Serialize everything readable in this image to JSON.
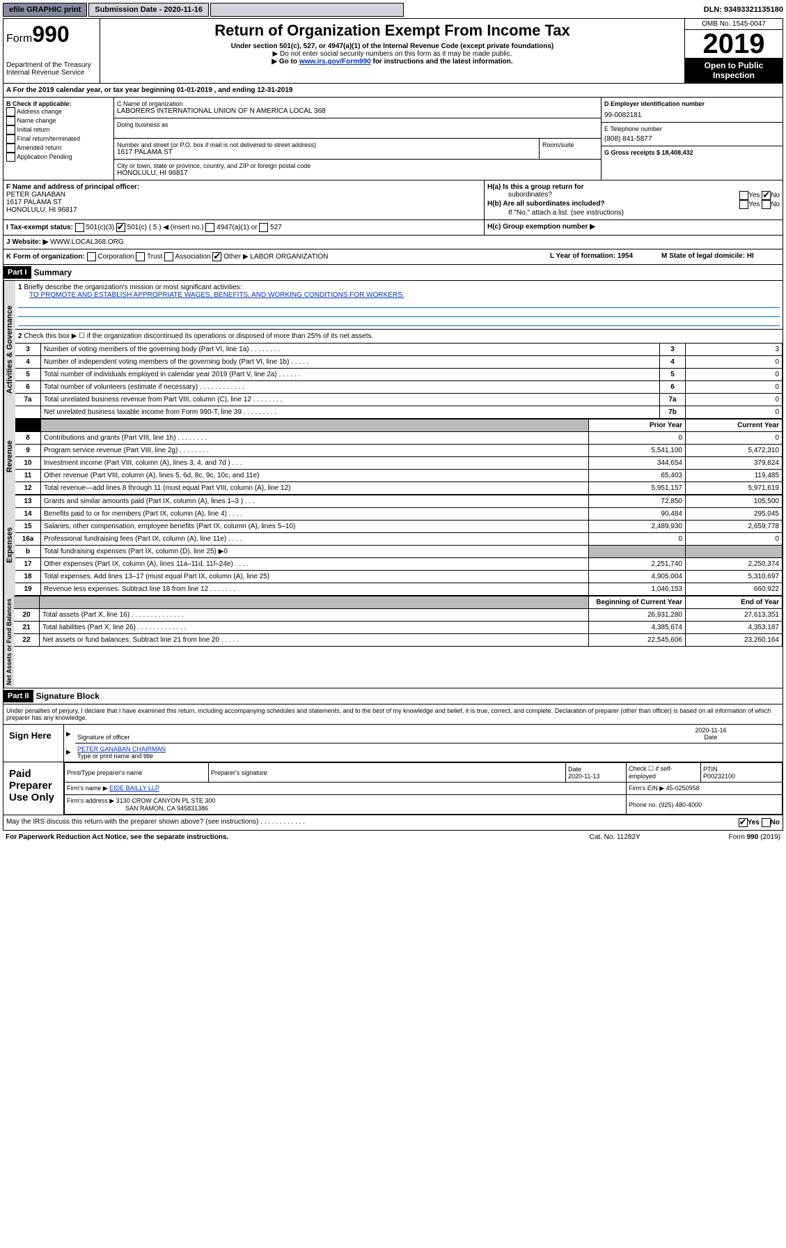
{
  "topbar": {
    "efile": "efile GRAPHIC print",
    "submission": "Submission Date - 2020-11-16",
    "dln": "DLN: 93493321135180"
  },
  "header": {
    "form_prefix": "Form",
    "form_num": "990",
    "dept": "Department of the Treasury",
    "irs": "Internal Revenue Service",
    "title": "Return of Organization Exempt From Income Tax",
    "subtitle": "Under section 501(c), 527, or 4947(a)(1) of the Internal Revenue Code (except private foundations)",
    "note1": "▶ Do not enter social security numbers on this form as it may be made public.",
    "note2_pre": "▶ Go to ",
    "note2_link": "www.irs.gov/Form990",
    "note2_post": " for instructions and the latest information.",
    "omb": "OMB No. 1545-0047",
    "year": "2019",
    "open": "Open to Public",
    "inspection": "Inspection"
  },
  "period": "A For the 2019 calendar year, or tax year beginning 01-01-2019   , and ending 12-31-2019",
  "checkboxes": {
    "b_label": "B Check if applicable:",
    "addr_change": "Address change",
    "name_change": "Name change",
    "initial": "Initial return",
    "final": "Final return/terminated",
    "amended": "Amended return",
    "pending": "Application Pending"
  },
  "org": {
    "c_label": "C Name of organization",
    "name": "LABORERS INTERNATIONAL UNION OF N AMERICA LOCAL 368",
    "dba": "Doing business as",
    "addr_label": "Number and street (or P.O. box if mail is not delivered to street address)",
    "room": "Room/suite",
    "street": "1617 PALAMA ST",
    "city_label": "City or town, state or province, country, and ZIP or foreign postal code",
    "city": "HONOLULU, HI  96817"
  },
  "right_box": {
    "d_label": "D Employer identification number",
    "ein": "99-0082181",
    "e_label": "E Telephone number",
    "phone": "(808) 841-5877",
    "g_label": "G Gross receipts $ 18,408,432"
  },
  "f_box": {
    "label": "F  Name and address of principal officer:",
    "name": "PETER GANABAN",
    "street": "1617 PALAMA ST",
    "city": "HONOLULU, HI  96817"
  },
  "h_box": {
    "ha": "H(a)  Is this a group return for",
    "subs": "subordinates?",
    "hb": "H(b)  Are all subordinates included?",
    "note": "If \"No,\" attach a list. (see instructions)",
    "hc": "H(c)  Group exemption number ▶",
    "yes": "Yes",
    "no": "No"
  },
  "i_row": {
    "label": "I  Tax-exempt status:",
    "c3": "501(c)(3)",
    "c5": "501(c) ( 5 ) ◀ (insert no.)",
    "a1": "4947(a)(1) or",
    "s527": "527"
  },
  "j_row": {
    "label": "J  Website: ▶",
    "url": "WWW.LOCAL368.ORG"
  },
  "k_row": {
    "label": "K Form of organization:",
    "corp": "Corporation",
    "trust": "Trust",
    "assoc": "Association",
    "other": "Other ▶",
    "other_val": "LABOR ORGANIZATION",
    "l_label": "L Year of formation: 1954",
    "m_label": "M State of legal domicile: HI"
  },
  "part1": {
    "hdr": "Part I",
    "title": "Summary",
    "vtab1": "Activities & Governance",
    "vtab2": "Revenue",
    "vtab3": "Expenses",
    "vtab4": "Net Assets or Fund Balances",
    "l1": "Briefly describe the organization's mission or most significant activities:",
    "mission": "TO PROMOTE AND ESTABLISH APPROPRIATE WAGES, BENEFITS, AND WORKING CONDITIONS FOR WORKERS.",
    "l2": "Check this box ▶ ☐  if the organization discontinued its operations or disposed of more than 25% of its net assets.",
    "rows_gov": [
      {
        "n": "3",
        "t": "Number of voting members of the governing body (Part VI, line 1a)  .   .   .   .   .   .   .   .",
        "b": "3",
        "v": "3"
      },
      {
        "n": "4",
        "t": "Number of independent voting members of the governing body (Part VI, line 1b)  .   .   .   .   .",
        "b": "4",
        "v": "0"
      },
      {
        "n": "5",
        "t": "Total number of individuals employed in calendar year 2019 (Part V, line 2a)  .   .   .   .   .   .",
        "b": "5",
        "v": "0"
      },
      {
        "n": "6",
        "t": "Total number of volunteers (estimate if necessary)  .   .   .   .   .   .   .   .   .   .   .   .",
        "b": "6",
        "v": "0"
      },
      {
        "n": "7a",
        "t": "Total unrelated business revenue from Part VIII, column (C), line 12  .   .   .   .   .   .   .   .",
        "b": "7a",
        "v": "0"
      },
      {
        "n": "",
        "t": "Net unrelated business taxable income from Form 990-T, line 39  .   .   .   .   .   .   .   .   .",
        "b": "7b",
        "v": "0"
      }
    ],
    "col_prior": "Prior Year",
    "col_current": "Current Year",
    "rows_rev": [
      {
        "n": "8",
        "t": "Contributions and grants (Part VIII, line 1h)  .   .   .   .   .   .   .   .",
        "p": "0",
        "c": "0"
      },
      {
        "n": "9",
        "t": "Program service revenue (Part VIII, line 2g)  .   .   .   .   .   .   .   .",
        "p": "5,541,100",
        "c": "5,472,310"
      },
      {
        "n": "10",
        "t": "Investment income (Part VIII, column (A), lines 3, 4, and 7d )  .   .   .",
        "p": "344,654",
        "c": "379,824"
      },
      {
        "n": "11",
        "t": "Other revenue (Part VIII, column (A), lines 5, 6d, 8c, 9c, 10c, and 11e)",
        "p": "65,403",
        "c": "119,485"
      },
      {
        "n": "12",
        "t": "Total revenue—add lines 8 through 11 (must equal Part VIII, column (A), line 12)",
        "p": "5,951,157",
        "c": "5,971,619"
      }
    ],
    "rows_exp": [
      {
        "n": "13",
        "t": "Grants and similar amounts paid (Part IX, column (A), lines 1–3 )  .   .   .",
        "p": "72,850",
        "c": "105,500"
      },
      {
        "n": "14",
        "t": "Benefits paid to or for members (Part IX, column (A), line 4)  .   .   .   .",
        "p": "90,484",
        "c": "295,045"
      },
      {
        "n": "15",
        "t": "Salaries, other compensation, employee benefits (Part IX, column (A), lines 5–10)",
        "p": "2,489,930",
        "c": "2,659,778"
      },
      {
        "n": "16a",
        "t": "Professional fundraising fees (Part IX, column (A), line 11e)  .   .   .   .",
        "p": "0",
        "c": "0"
      },
      {
        "n": "b",
        "t": "Total fundraising expenses (Part IX, column (D), line 25) ▶0",
        "p": "",
        "c": ""
      },
      {
        "n": "17",
        "t": "Other expenses (Part IX, column (A), lines 11a–11d, 11f–24e)  .   .   .   .",
        "p": "2,251,740",
        "c": "2,250,374"
      },
      {
        "n": "18",
        "t": "Total expenses. Add lines 13–17 (must equal Part IX, column (A), line 25)",
        "p": "4,905,004",
        "c": "5,310,697"
      },
      {
        "n": "19",
        "t": "Revenue less expenses. Subtract line 18 from line 12  .   .   .   .   .   .   .",
        "p": "1,046,153",
        "c": "660,922"
      }
    ],
    "col_begin": "Beginning of Current Year",
    "col_end": "End of Year",
    "rows_net": [
      {
        "n": "20",
        "t": "Total assets (Part X, line 16)  .   .   .   .   .   .   .   .   .   .   .   .   .   .",
        "p": "26,931,280",
        "c": "27,613,351"
      },
      {
        "n": "21",
        "t": "Total liabilities (Part X, line 26)  .   .   .   .   .   .   .   .   .   .   .   .   .",
        "p": "4,385,674",
        "c": "4,353,187"
      },
      {
        "n": "22",
        "t": "Net assets or fund balances. Subtract line 21 from line 20  .   .   .   .   .",
        "p": "22,545,606",
        "c": "23,260,164"
      }
    ]
  },
  "part2": {
    "hdr": "Part II",
    "title": "Signature Block",
    "perjury": "Under penalties of perjury, I declare that I have examined this return, including accompanying schedules and statements, and to the best of my knowledge and belief, it is true, correct, and complete. Declaration of preparer (other than officer) is based on all information of which preparer has any knowledge.",
    "sign_here": "Sign Here",
    "sig_officer": "Signature of officer",
    "sig_date": "2020-11-16",
    "date_lbl": "Date",
    "officer_name": "PETER GANABAN  CHAIRMAN",
    "type_name": "Type or print name and title",
    "paid": "Paid Preparer Use Only",
    "prep_name_lbl": "Print/Type preparer's name",
    "prep_sig_lbl": "Preparer's signature",
    "prep_date": "2020-11-13",
    "check_lbl": "Check ☐ if self-employed",
    "ptin_lbl": "PTIN",
    "ptin": "P00232100",
    "firm_name_lbl": "Firm's name    ▶",
    "firm_name": "EIDE BAILLY LLP",
    "firm_ein_lbl": "Firm's EIN ▶",
    "firm_ein": "45-0250958",
    "firm_addr_lbl": "Firm's address ▶",
    "firm_addr1": "3130 CROW CANYON PL STE 300",
    "firm_addr2": "SAN RAMON, CA  945831386",
    "phone_lbl": "Phone no. (925) 480-4000",
    "discuss": "May the IRS discuss this return with the preparer shown above? (see instructions)   .   .   .   .   .   .   .   .   .   .   .   .",
    "pra": "For Paperwork Reduction Act Notice, see the separate instructions.",
    "cat": "Cat. No. 11282Y",
    "form_foot": "Form 990 (2019)"
  }
}
